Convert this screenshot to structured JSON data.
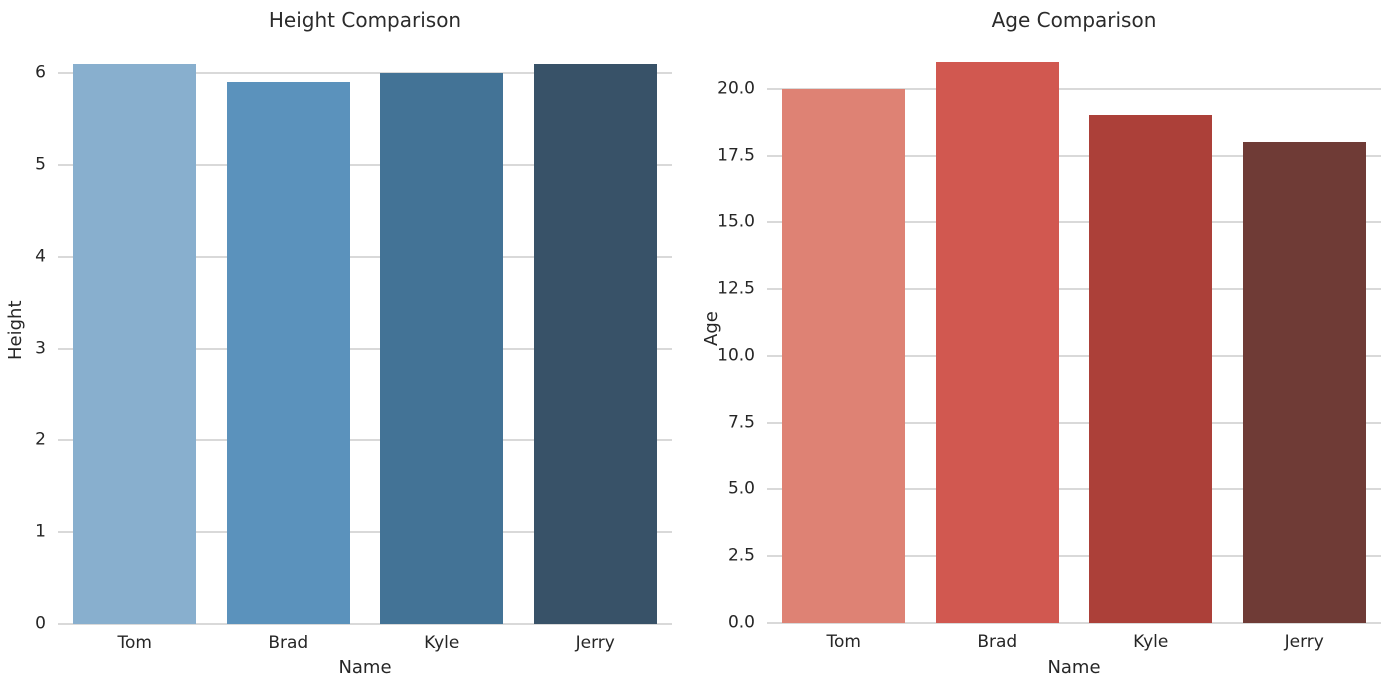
{
  "figure": {
    "background": "#ffffff",
    "text_color": "#262626",
    "grid_color": "#d9d9d9"
  },
  "chart_data": [
    {
      "type": "bar",
      "title": "Height Comparison",
      "xlabel": "Name",
      "ylabel": "Height",
      "categories": [
        "Tom",
        "Brad",
        "Kyle",
        "Jerry"
      ],
      "values": [
        6.1,
        5.9,
        6.0,
        6.1
      ],
      "bar_colors": [
        "#88afce",
        "#5b92bc",
        "#437396",
        "#385268"
      ],
      "yticks": [
        0,
        1,
        2,
        3,
        4,
        5,
        6
      ],
      "ytick_labels": [
        "0",
        "1",
        "2",
        "3",
        "4",
        "5",
        "6"
      ],
      "ylim": [
        0,
        6.405
      ],
      "bar_fraction": 0.8,
      "grid": true,
      "legend": false
    },
    {
      "type": "bar",
      "title": "Age Comparison",
      "xlabel": "Name",
      "ylabel": "Age",
      "categories": [
        "Tom",
        "Brad",
        "Kyle",
        "Jerry"
      ],
      "values": [
        20,
        21,
        19,
        18
      ],
      "bar_colors": [
        "#de8274",
        "#d15850",
        "#ac4039",
        "#6f3b36"
      ],
      "yticks": [
        0,
        2.5,
        5,
        7.5,
        10,
        12.5,
        15,
        17.5,
        20
      ],
      "ytick_labels": [
        "0.0",
        "2.5",
        "5.0",
        "7.5",
        "10.0",
        "12.5",
        "15.0",
        "17.5",
        "20.0"
      ],
      "ylim": [
        0,
        22.05
      ],
      "bar_fraction": 0.8,
      "grid": true,
      "legend": false
    }
  ]
}
